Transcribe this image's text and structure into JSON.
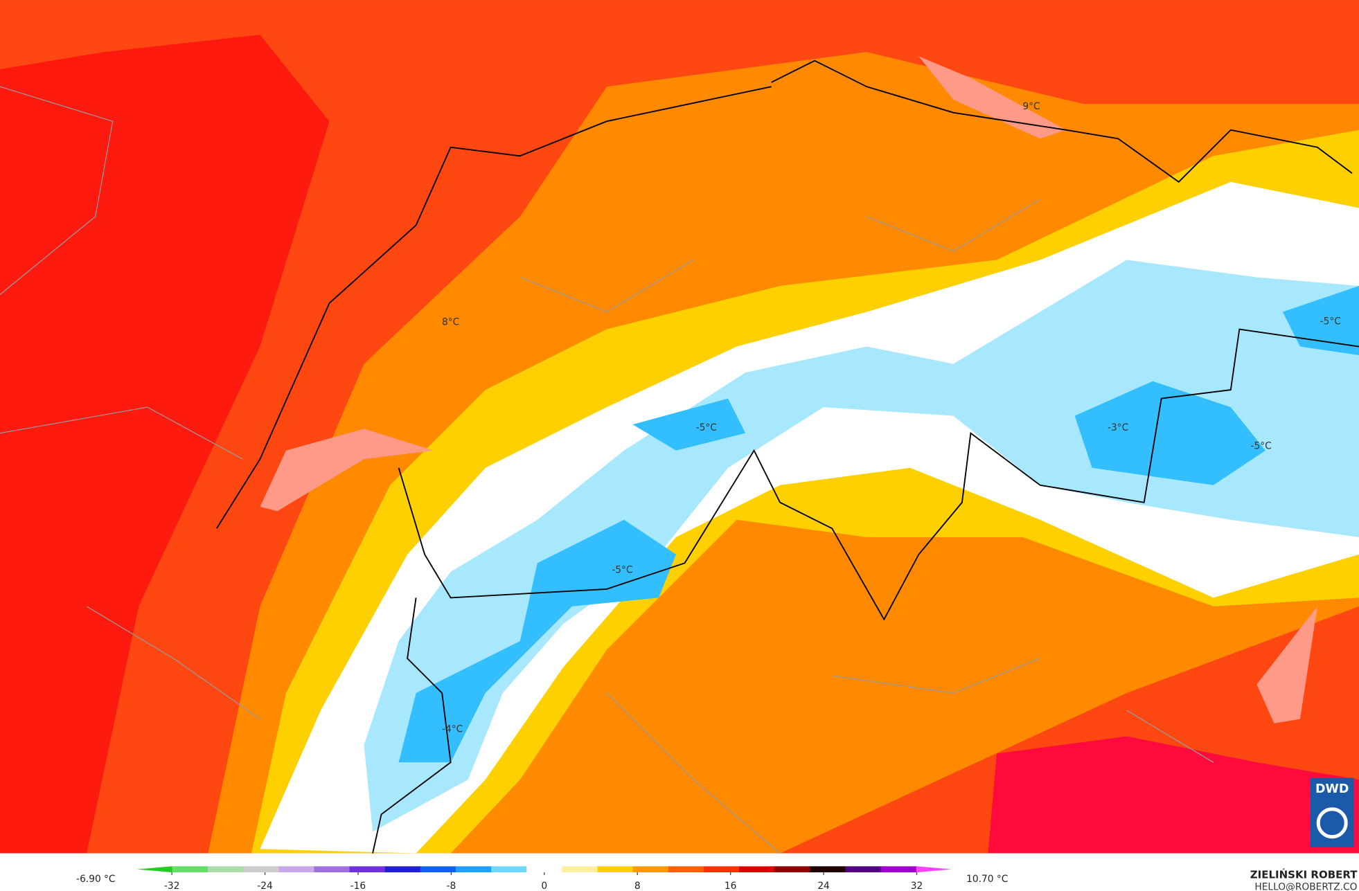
{
  "map_labels": [
    "9°C",
    "8°C",
    "-5°C",
    "-5°C",
    "-3°C",
    "-5°C",
    "-5°C",
    "-4°C"
  ],
  "colorbar": {
    "min_label": "-6.90 °C",
    "max_label": "10.70 °C",
    "lim": [
      -35,
      35
    ],
    "ticks": [
      -32,
      -24,
      -16,
      -8,
      0,
      8,
      16,
      24,
      32
    ],
    "colors": [
      "#22cc22",
      "#66dd66",
      "#aaddaa",
      "#cccccc",
      "#c8a8e8",
      "#a070e0",
      "#7030e0",
      "#2020d0",
      "#1060f0",
      "#20a0ff",
      "#70d8ff",
      "#ffffff",
      "#fff0a0",
      "#ffd000",
      "#ff9900",
      "#ff6000",
      "#ff3000",
      "#e00000",
      "#900000",
      "#200000",
      "#500080",
      "#a000d0",
      "#ff40ff"
    ]
  },
  "credit": {
    "name": "ZIELIŃSKI ROBERT",
    "email": "HELLO@ROBERTZ.CO",
    "logo": "DWD"
  }
}
